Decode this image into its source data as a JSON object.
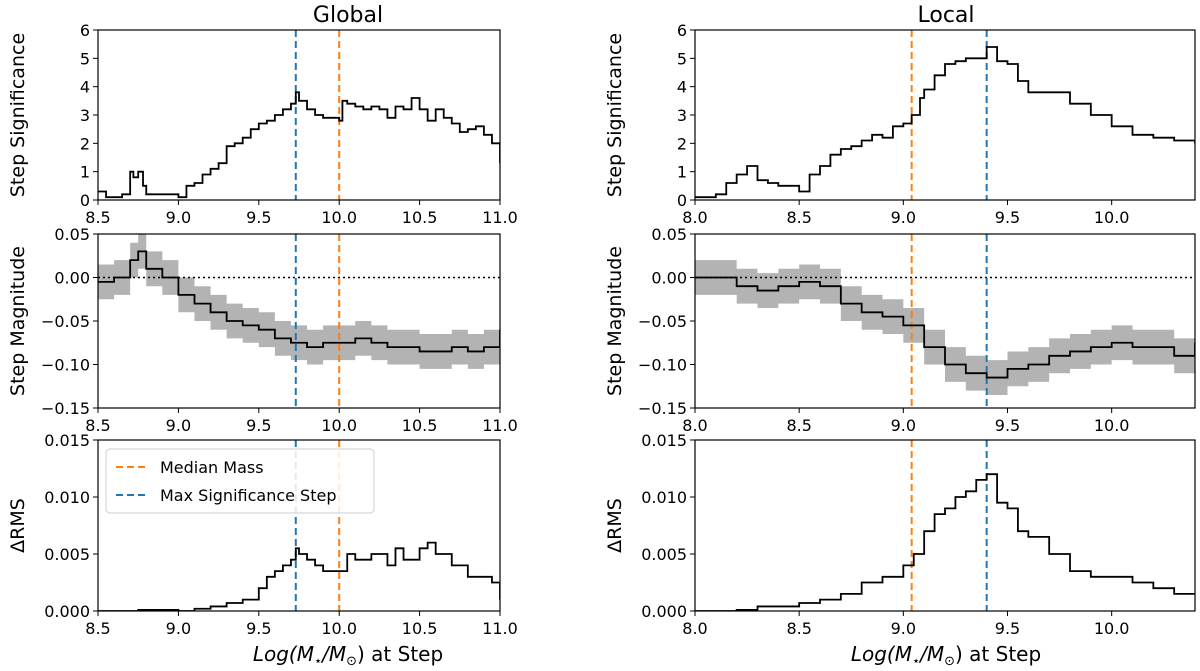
{
  "figure": {
    "columns": [
      {
        "title": "Global"
      },
      {
        "title": "Local"
      }
    ],
    "xlabel_prefix": "Log(M",
    "xlabel_star": "⋆",
    "xlabel_mid": "/M",
    "xlabel_sun": "⊙",
    "xlabel_suffix": ") at Step"
  },
  "legend": {
    "entries": [
      {
        "label": "Median Mass",
        "color": "#ff7f0e"
      },
      {
        "label": "Max Significance Step",
        "color": "#1f77b4"
      }
    ]
  },
  "colors": {
    "median": "#ff7f0e",
    "max_step": "#1f77b4",
    "band": "#b3b3b3",
    "line": "#000000"
  },
  "chart_data": [
    {
      "type": "line",
      "id": "global-significance",
      "column": "Global",
      "ylabel": "Step Significance",
      "xlim": [
        8.5,
        11.0
      ],
      "ylim": [
        0,
        6
      ],
      "xticks": [
        "8.5",
        "9.0",
        "9.5",
        "10.0",
        "10.5",
        "11.0"
      ],
      "yticks": [
        "0",
        "1",
        "2",
        "3",
        "4",
        "5",
        "6"
      ],
      "median_mass": 10.0,
      "max_step": 9.73,
      "x": [
        8.5,
        8.55,
        8.6,
        8.65,
        8.7,
        8.72,
        8.75,
        8.78,
        8.8,
        8.9,
        9.0,
        9.05,
        9.1,
        9.15,
        9.2,
        9.25,
        9.3,
        9.35,
        9.4,
        9.45,
        9.5,
        9.55,
        9.6,
        9.65,
        9.7,
        9.73,
        9.75,
        9.8,
        9.85,
        9.9,
        9.95,
        10.0,
        10.02,
        10.05,
        10.1,
        10.15,
        10.2,
        10.25,
        10.3,
        10.35,
        10.4,
        10.45,
        10.5,
        10.55,
        10.6,
        10.65,
        10.7,
        10.75,
        10.8,
        10.85,
        10.9,
        10.95,
        11.0
      ],
      "y": [
        0.3,
        0.1,
        0.1,
        0.2,
        1.0,
        0.8,
        1.0,
        0.5,
        0.2,
        0.2,
        0.1,
        0.5,
        0.6,
        0.9,
        1.1,
        1.3,
        1.9,
        2.0,
        2.2,
        2.5,
        2.7,
        2.8,
        3.0,
        3.2,
        3.4,
        3.8,
        3.5,
        3.2,
        3.0,
        2.9,
        2.9,
        2.8,
        3.5,
        3.4,
        3.3,
        3.2,
        3.3,
        3.2,
        2.9,
        3.3,
        3.2,
        3.6,
        3.2,
        2.8,
        3.2,
        2.9,
        2.7,
        2.4,
        2.5,
        2.6,
        2.3,
        2.0,
        1.3
      ]
    },
    {
      "type": "line",
      "id": "local-significance",
      "column": "Local",
      "ylabel": "Step Significance",
      "xlim": [
        8.0,
        10.4
      ],
      "ylim": [
        0,
        6
      ],
      "xticks": [
        "8.0",
        "8.5",
        "9.0",
        "9.5",
        "10.0"
      ],
      "yticks": [
        "0",
        "1",
        "2",
        "3",
        "4",
        "5",
        "6"
      ],
      "median_mass": 9.04,
      "max_step": 9.4,
      "x": [
        8.0,
        8.05,
        8.1,
        8.15,
        8.2,
        8.25,
        8.3,
        8.35,
        8.4,
        8.45,
        8.5,
        8.55,
        8.6,
        8.65,
        8.7,
        8.75,
        8.8,
        8.85,
        8.9,
        8.95,
        9.0,
        9.04,
        9.08,
        9.1,
        9.15,
        9.2,
        9.25,
        9.3,
        9.35,
        9.4,
        9.45,
        9.5,
        9.55,
        9.6,
        9.7,
        9.8,
        9.9,
        10.0,
        10.1,
        10.2,
        10.3,
        10.4
      ],
      "y": [
        0.1,
        0.1,
        0.2,
        0.6,
        0.9,
        1.2,
        0.7,
        0.6,
        0.5,
        0.5,
        0.3,
        0.9,
        1.2,
        1.6,
        1.8,
        1.9,
        2.1,
        2.3,
        2.2,
        2.6,
        2.7,
        3.0,
        3.6,
        3.9,
        4.4,
        4.8,
        4.9,
        5.0,
        5.0,
        5.4,
        4.9,
        4.8,
        4.2,
        3.8,
        3.8,
        3.4,
        3.0,
        2.6,
        2.3,
        2.2,
        2.1,
        2.0
      ]
    },
    {
      "type": "line",
      "id": "global-magnitude",
      "column": "Global",
      "ylabel": "Step Magnitude",
      "xlim": [
        8.5,
        11.0
      ],
      "ylim": [
        -0.15,
        0.05
      ],
      "xticks": [
        "8.5",
        "9.0",
        "9.5",
        "10.0",
        "10.5",
        "11.0"
      ],
      "yticks": [
        "−0.15",
        "−0.10",
        "−0.05",
        "0.00",
        "0.05"
      ],
      "median_mass": 10.0,
      "max_step": 9.73,
      "zero_line": true,
      "x": [
        8.5,
        8.6,
        8.7,
        8.75,
        8.8,
        8.85,
        8.9,
        9.0,
        9.1,
        9.2,
        9.3,
        9.4,
        9.5,
        9.6,
        9.7,
        9.8,
        9.9,
        10.0,
        10.1,
        10.2,
        10.3,
        10.4,
        10.5,
        10.6,
        10.7,
        10.8,
        10.9,
        11.0
      ],
      "y": [
        -0.005,
        0.0,
        0.02,
        0.03,
        0.01,
        0.01,
        0.0,
        -0.02,
        -0.03,
        -0.04,
        -0.05,
        -0.055,
        -0.06,
        -0.07,
        -0.075,
        -0.08,
        -0.075,
        -0.075,
        -0.07,
        -0.075,
        -0.08,
        -0.08,
        -0.085,
        -0.085,
        -0.08,
        -0.085,
        -0.08,
        -0.06
      ],
      "err": [
        0.02,
        0.02,
        0.02,
        0.02,
        0.02,
        0.02,
        0.02,
        0.02,
        0.02,
        0.02,
        0.02,
        0.02,
        0.02,
        0.02,
        0.02,
        0.02,
        0.02,
        0.02,
        0.02,
        0.02,
        0.02,
        0.02,
        0.02,
        0.02,
        0.02,
        0.02,
        0.02,
        0.02
      ]
    },
    {
      "type": "line",
      "id": "local-magnitude",
      "column": "Local",
      "ylabel": "Step Magnitude",
      "xlim": [
        8.0,
        10.4
      ],
      "ylim": [
        -0.15,
        0.05
      ],
      "xticks": [
        "8.0",
        "8.5",
        "9.0",
        "9.5",
        "10.0"
      ],
      "yticks": [
        "−0.15",
        "−0.10",
        "−0.05",
        "0.00",
        "0.05"
      ],
      "median_mass": 9.04,
      "max_step": 9.4,
      "zero_line": true,
      "x": [
        8.0,
        8.1,
        8.2,
        8.3,
        8.4,
        8.5,
        8.6,
        8.7,
        8.8,
        8.9,
        9.0,
        9.1,
        9.2,
        9.3,
        9.4,
        9.5,
        9.6,
        9.7,
        9.8,
        9.9,
        10.0,
        10.1,
        10.2,
        10.3,
        10.4
      ],
      "y": [
        0.0,
        0.0,
        -0.01,
        -0.015,
        -0.01,
        -0.005,
        -0.01,
        -0.03,
        -0.04,
        -0.045,
        -0.055,
        -0.08,
        -0.1,
        -0.11,
        -0.115,
        -0.105,
        -0.1,
        -0.09,
        -0.085,
        -0.08,
        -0.075,
        -0.08,
        -0.08,
        -0.09,
        -0.075
      ],
      "err": [
        0.02,
        0.02,
        0.02,
        0.02,
        0.02,
        0.02,
        0.02,
        0.02,
        0.02,
        0.02,
        0.02,
        0.02,
        0.02,
        0.02,
        0.02,
        0.02,
        0.02,
        0.02,
        0.02,
        0.02,
        0.02,
        0.02,
        0.02,
        0.02,
        0.02
      ]
    },
    {
      "type": "line",
      "id": "global-rms",
      "column": "Global",
      "ylabel": "ΔRMS",
      "xlim": [
        8.5,
        11.0
      ],
      "ylim": [
        0,
        0.015
      ],
      "xticks": [
        "8.5",
        "9.0",
        "9.5",
        "10.0",
        "10.5",
        "11.0"
      ],
      "yticks": [
        "0.000",
        "0.005",
        "0.010",
        "0.015"
      ],
      "median_mass": 10.0,
      "max_step": 9.73,
      "legend": true,
      "x": [
        8.5,
        8.7,
        8.75,
        8.8,
        9.0,
        9.1,
        9.2,
        9.3,
        9.4,
        9.5,
        9.55,
        9.6,
        9.65,
        9.7,
        9.73,
        9.75,
        9.8,
        9.85,
        9.9,
        10.0,
        10.05,
        10.1,
        10.2,
        10.3,
        10.35,
        10.4,
        10.5,
        10.55,
        10.6,
        10.7,
        10.8,
        10.9,
        10.95,
        11.0
      ],
      "y": [
        0.0,
        0.0,
        0.0001,
        0.0001,
        0.0,
        0.0002,
        0.0004,
        0.0007,
        0.001,
        0.002,
        0.003,
        0.0035,
        0.004,
        0.0045,
        0.0055,
        0.005,
        0.0045,
        0.004,
        0.0035,
        0.0035,
        0.005,
        0.0045,
        0.005,
        0.004,
        0.0055,
        0.0045,
        0.0055,
        0.006,
        0.005,
        0.004,
        0.003,
        0.003,
        0.0025,
        0.001
      ]
    },
    {
      "type": "line",
      "id": "local-rms",
      "column": "Local",
      "ylabel": "ΔRMS",
      "xlim": [
        8.0,
        10.4
      ],
      "ylim": [
        0,
        0.015
      ],
      "xticks": [
        "8.0",
        "8.5",
        "9.0",
        "9.5",
        "10.0"
      ],
      "yticks": [
        "0.000",
        "0.005",
        "0.010",
        "0.015"
      ],
      "median_mass": 9.04,
      "max_step": 9.4,
      "x": [
        8.0,
        8.2,
        8.3,
        8.4,
        8.5,
        8.6,
        8.7,
        8.8,
        8.9,
        9.0,
        9.05,
        9.1,
        9.15,
        9.2,
        9.25,
        9.3,
        9.35,
        9.4,
        9.45,
        9.5,
        9.55,
        9.6,
        9.7,
        9.8,
        9.9,
        10.0,
        10.1,
        10.2,
        10.3,
        10.4
      ],
      "y": [
        0.0,
        0.0001,
        0.0004,
        0.0004,
        0.0007,
        0.001,
        0.0015,
        0.0025,
        0.003,
        0.004,
        0.005,
        0.007,
        0.0085,
        0.009,
        0.01,
        0.0105,
        0.0115,
        0.012,
        0.0095,
        0.009,
        0.007,
        0.0065,
        0.005,
        0.0035,
        0.003,
        0.003,
        0.0025,
        0.002,
        0.0015,
        0.0015
      ]
    }
  ]
}
